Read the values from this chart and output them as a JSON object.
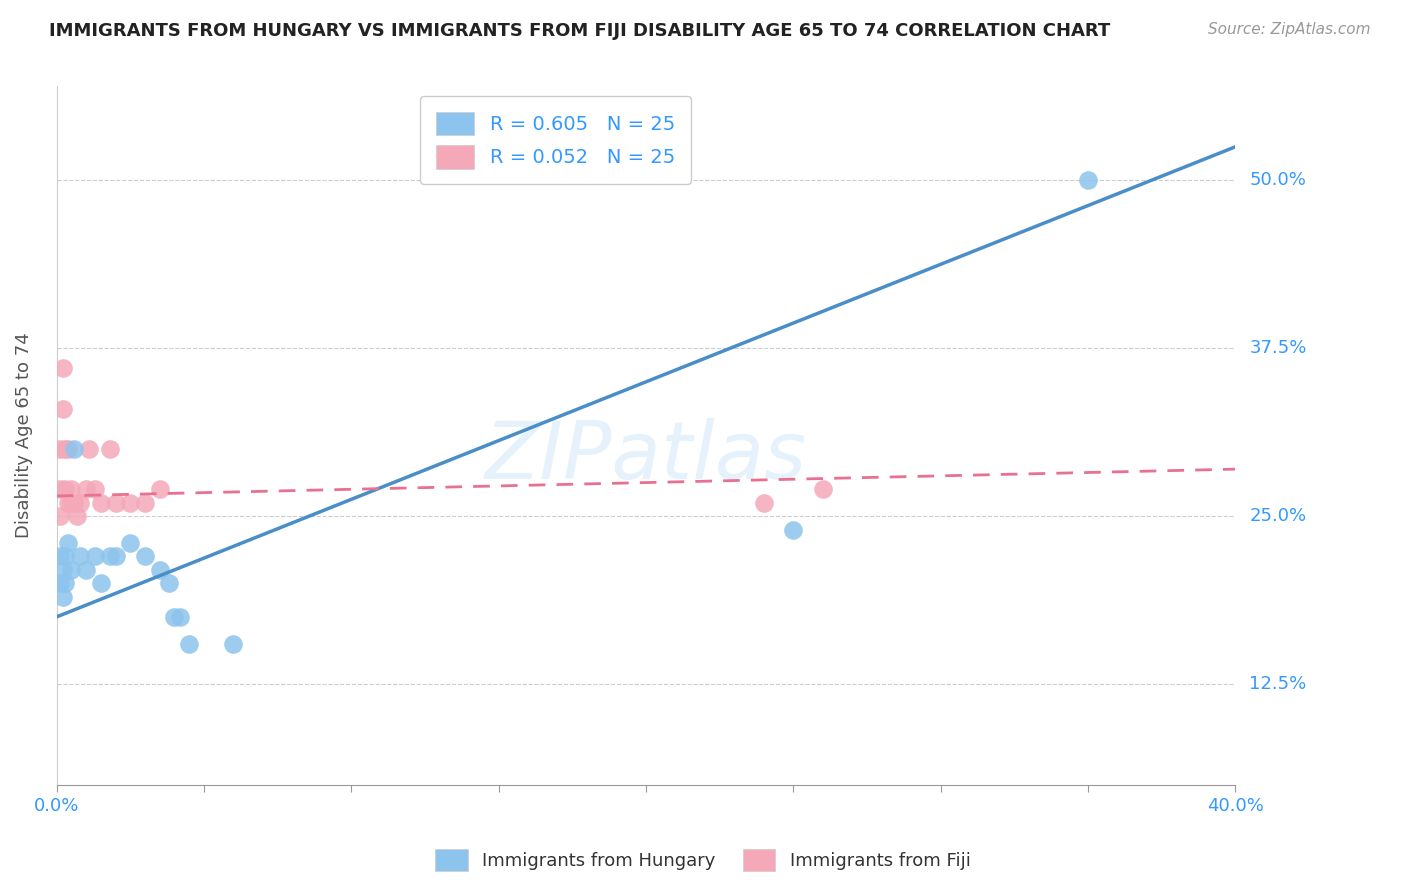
{
  "title": "IMMIGRANTS FROM HUNGARY VS IMMIGRANTS FROM FIJI DISABILITY AGE 65 TO 74 CORRELATION CHART",
  "source": "Source: ZipAtlas.com",
  "ylabel": "Disability Age 65 to 74",
  "legend1_r": "R = 0.605",
  "legend1_n": "N = 25",
  "legend2_r": "R = 0.052",
  "legend2_n": "N = 25",
  "color_hungary": "#8DC4ED",
  "color_fiji": "#F4A8B8",
  "color_hungary_line": "#4A8EC8",
  "color_fiji_line": "#E87090",
  "background_color": "#ffffff",
  "watermark": "ZIPatlas",
  "hungary_x": [
    0.001,
    0.001,
    0.002,
    0.002,
    0.003,
    0.003,
    0.004,
    0.005,
    0.006,
    0.008,
    0.01,
    0.013,
    0.015,
    0.018,
    0.02,
    0.025,
    0.03,
    0.035,
    0.038,
    0.04,
    0.042,
    0.045,
    0.06,
    0.25,
    0.35
  ],
  "hungary_y": [
    0.2,
    0.22,
    0.21,
    0.19,
    0.22,
    0.2,
    0.23,
    0.21,
    0.3,
    0.22,
    0.21,
    0.22,
    0.2,
    0.22,
    0.22,
    0.23,
    0.22,
    0.21,
    0.2,
    0.175,
    0.175,
    0.155,
    0.155,
    0.24,
    0.5
  ],
  "fiji_x": [
    0.001,
    0.001,
    0.001,
    0.002,
    0.002,
    0.003,
    0.003,
    0.004,
    0.004,
    0.005,
    0.005,
    0.006,
    0.007,
    0.008,
    0.01,
    0.011,
    0.013,
    0.015,
    0.018,
    0.02,
    0.025,
    0.03,
    0.035,
    0.24,
    0.26
  ],
  "fiji_y": [
    0.27,
    0.3,
    0.25,
    0.33,
    0.36,
    0.3,
    0.27,
    0.26,
    0.3,
    0.26,
    0.27,
    0.26,
    0.25,
    0.26,
    0.27,
    0.3,
    0.27,
    0.26,
    0.3,
    0.26,
    0.26,
    0.26,
    0.27,
    0.26,
    0.27
  ],
  "xlim_min": 0.0,
  "xlim_max": 0.4,
  "ylim_min": 0.05,
  "ylim_max": 0.57,
  "hungary_line_x0": 0.0,
  "hungary_line_y0": 0.175,
  "hungary_line_x1": 0.4,
  "hungary_line_y1": 0.525,
  "fiji_line_x0": 0.0,
  "fiji_line_y0": 0.265,
  "fiji_line_x1": 0.4,
  "fiji_line_y1": 0.285,
  "ytick_vals": [
    0.125,
    0.25,
    0.375,
    0.5
  ],
  "ytick_labels": [
    "12.5%",
    "25.0%",
    "37.5%",
    "50.0%"
  ]
}
